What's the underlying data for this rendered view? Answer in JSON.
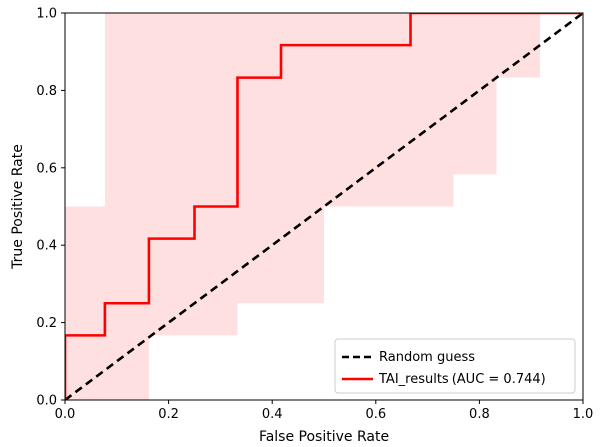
{
  "chart_data": {
    "type": "line",
    "title": "",
    "xlabel": "False Positive Rate",
    "ylabel": "True Positive Rate",
    "xlim": [
      0.0,
      1.0
    ],
    "ylim": [
      0.0,
      1.0
    ],
    "xticks": [
      "0.0",
      "0.2",
      "0.4",
      "0.6",
      "0.8",
      "1.0"
    ],
    "yticks": [
      "0.0",
      "0.2",
      "0.4",
      "0.6",
      "0.8",
      "1.0"
    ],
    "grid": false,
    "legend_position": "lower-right",
    "series": [
      {
        "name": "Random guess",
        "style": "dashed",
        "color": "#000000",
        "x": [
          0.0,
          1.0
        ],
        "y": [
          0.0,
          1.0
        ]
      },
      {
        "name": "TAI_results",
        "legend_label": "TAI_results",
        "legend_suffix": "(AUC = 0.744)",
        "auc": 0.744,
        "style": "step",
        "color": "#ff0000",
        "x": [
          0.0,
          0.0,
          0.077,
          0.077,
          0.162,
          0.162,
          0.25,
          0.25,
          0.333,
          0.333,
          0.417,
          0.417,
          0.667,
          0.667,
          1.0
        ],
        "y": [
          0.0,
          0.167,
          0.167,
          0.25,
          0.25,
          0.417,
          0.417,
          0.5,
          0.5,
          0.833,
          0.833,
          0.917,
          0.917,
          1.0,
          1.0
        ]
      }
    ],
    "confidence_band": {
      "color": "#ffcccc",
      "upper": {
        "x": [
          0.0,
          0.077,
          0.077,
          1.0
        ],
        "y": [
          0.5,
          0.5,
          1.0,
          1.0
        ]
      },
      "lower": {
        "x": [
          0.0,
          0.162,
          0.162,
          0.333,
          0.333,
          0.5,
          0.5,
          0.75,
          0.75,
          0.833,
          0.833,
          0.917,
          0.917,
          1.0
        ],
        "y": [
          0.0,
          0.0,
          0.167,
          0.167,
          0.25,
          0.25,
          0.5,
          0.5,
          0.583,
          0.583,
          0.833,
          0.833,
          1.0,
          1.0
        ]
      }
    }
  }
}
